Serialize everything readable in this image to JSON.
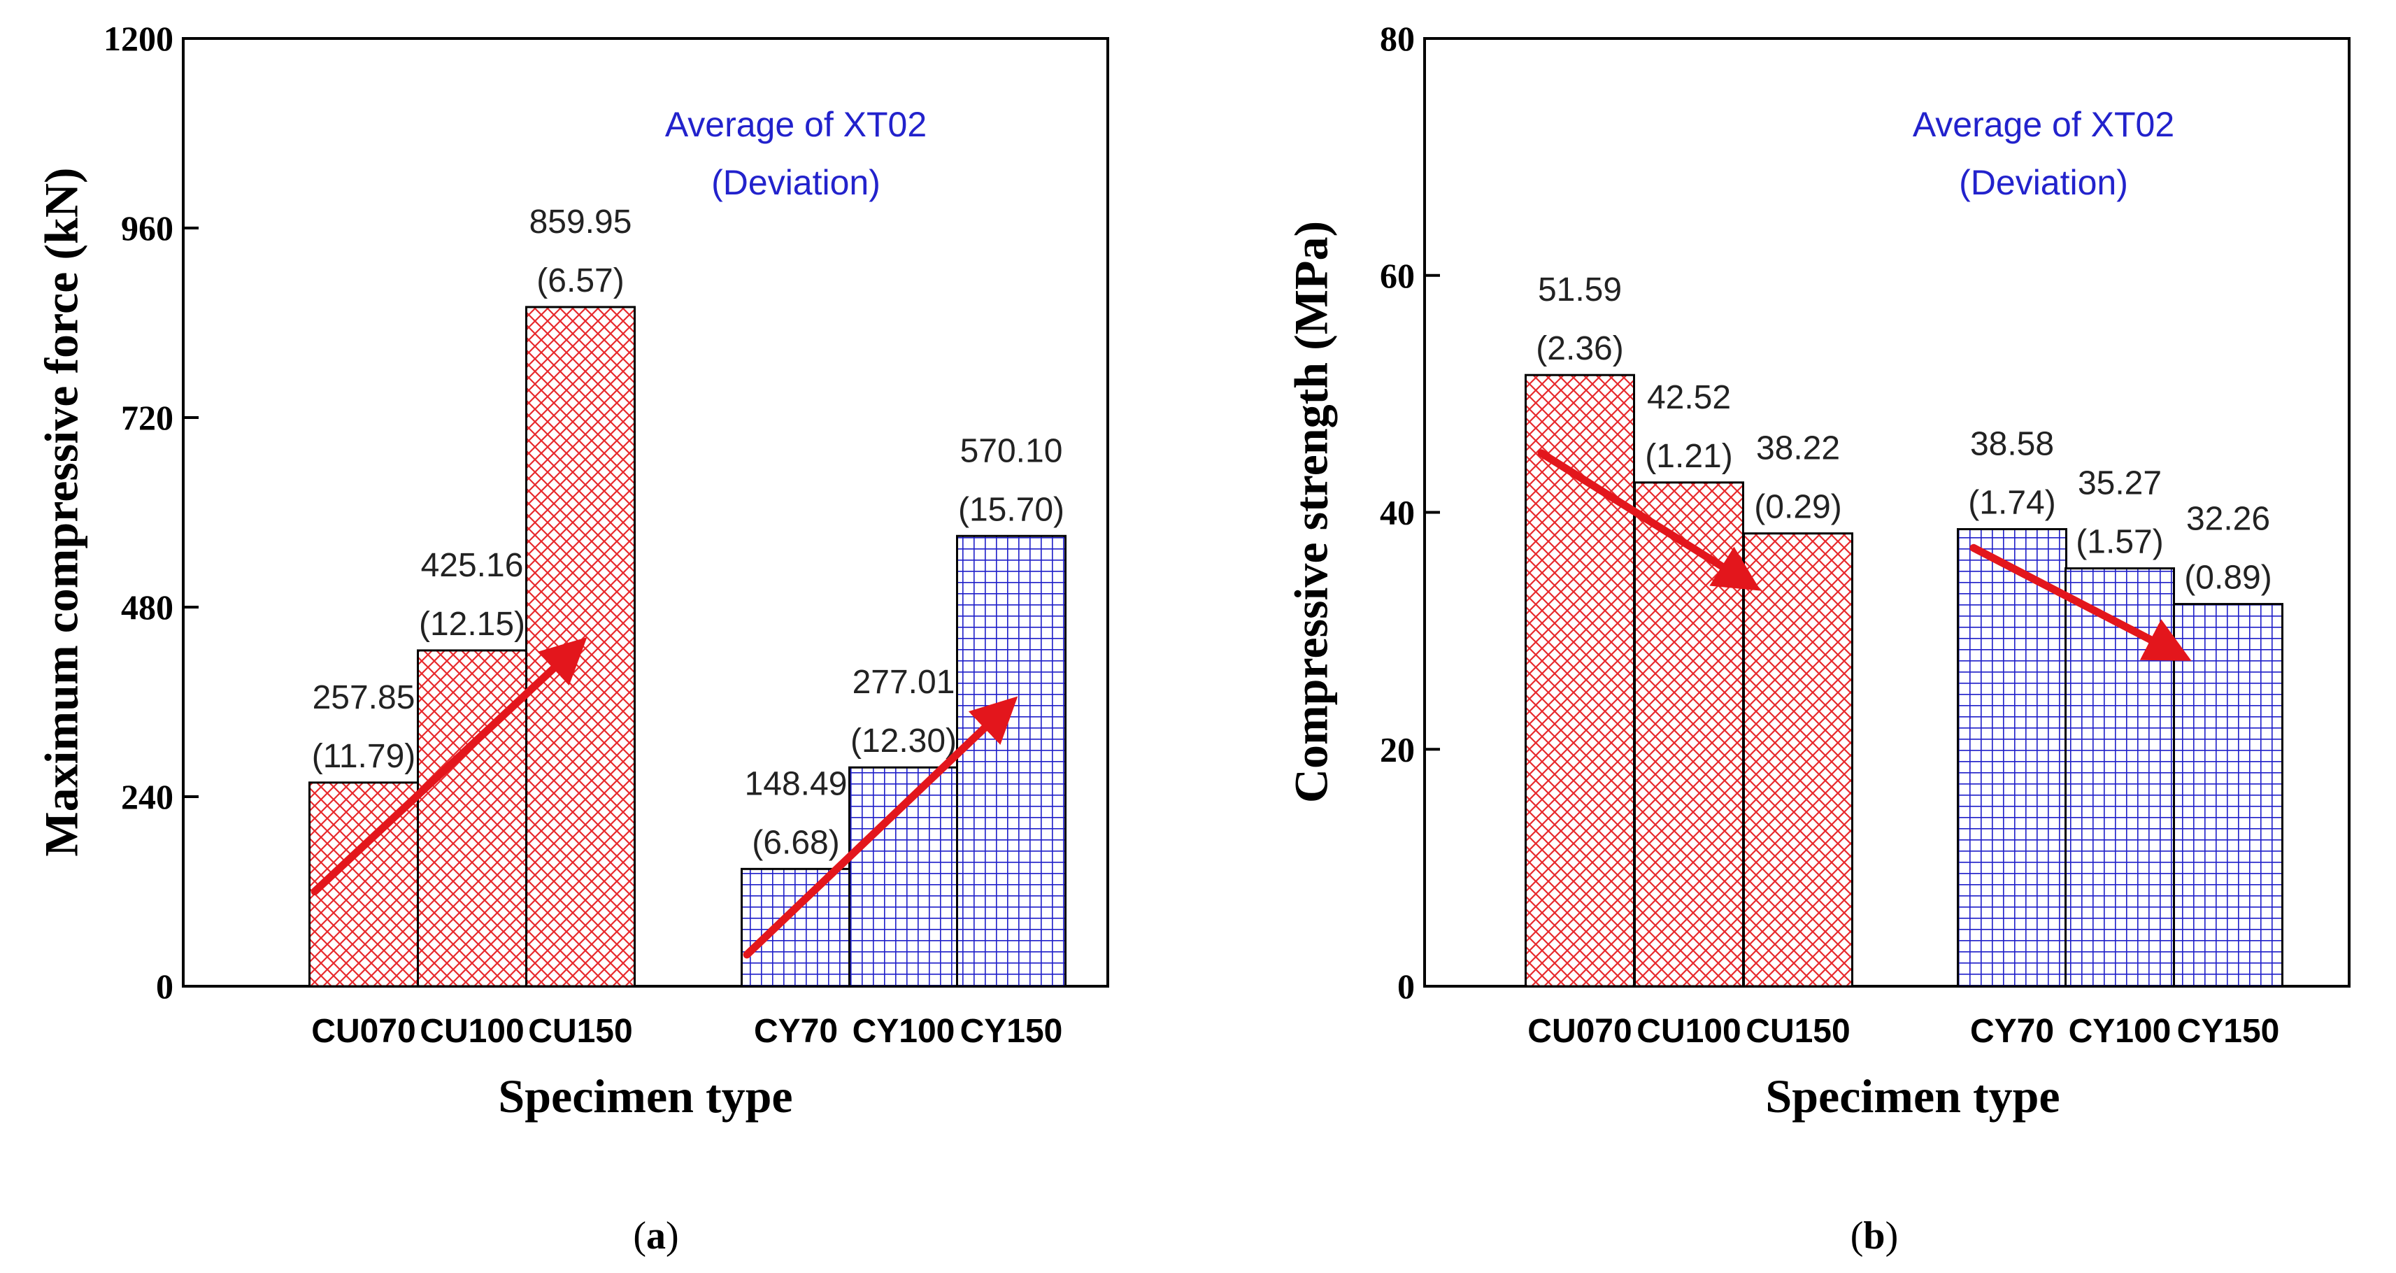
{
  "colors": {
    "cu_hatch": "#e8292c",
    "cy_hatch": "#1f1fc9",
    "arrow": "#e3161c",
    "note": "#2222cc"
  },
  "panels": [
    {
      "label": "(a)",
      "label_letter": "a"
    },
    {
      "label": "(b)",
      "label_letter": "b"
    }
  ],
  "chart_data": [
    {
      "type": "bar",
      "title": "",
      "note_line1": "Average of XT02",
      "note_line2": "(Deviation)",
      "xlabel": "Specimen type",
      "ylabel": "Maximum compressive force (kN)",
      "ylim": [
        0,
        1200
      ],
      "yticks": [
        "0",
        "240",
        "480",
        "720",
        "960",
        "1200"
      ],
      "categories": [
        "CU070",
        "CU100",
        "CU150",
        "CY70",
        "CY100",
        "CY150"
      ],
      "values": [
        257.85,
        425.16,
        859.95,
        148.49,
        277.01,
        570.1
      ],
      "value_labels": [
        "257.85",
        "425.16",
        "859.95",
        "148.49",
        "277.01",
        "570.10"
      ],
      "deviation_labels": [
        "(11.79)",
        "(12.15)",
        "(6.57)",
        "(6.68)",
        "(12.30)",
        "(15.70)"
      ],
      "groups": [
        {
          "name": "CU",
          "pattern": "crosshatch",
          "indices": [
            0,
            1,
            2
          ]
        },
        {
          "name": "CY",
          "pattern": "grid",
          "indices": [
            3,
            4,
            5
          ]
        }
      ],
      "trend_arrows": [
        {
          "group": "CU",
          "from": [
            0,
            120
          ],
          "to": [
            2,
            430
          ],
          "direction": "increasing"
        },
        {
          "group": "CY",
          "from": [
            3,
            40
          ],
          "to": [
            5,
            355
          ],
          "direction": "increasing"
        }
      ],
      "grid": false
    },
    {
      "type": "bar",
      "title": "",
      "note_line1": "Average of XT02",
      "note_line2": "(Deviation)",
      "xlabel": "Specimen type",
      "ylabel": "Compressive strength (MPa)",
      "ylim": [
        0,
        80
      ],
      "yticks": [
        "0",
        "20",
        "40",
        "60",
        "80"
      ],
      "categories": [
        "CU070",
        "CU100",
        "CU150",
        "CY70",
        "CY100",
        "CY150"
      ],
      "values": [
        51.59,
        42.52,
        38.22,
        38.58,
        35.27,
        32.26
      ],
      "value_labels": [
        "51.59",
        "42.52",
        "38.22",
        "38.58",
        "35.27",
        "32.26"
      ],
      "deviation_labels": [
        "(2.36)",
        "(1.21)",
        "(0.29)",
        "(1.74)",
        "(1.57)",
        "(0.89)"
      ],
      "groups": [
        {
          "name": "CU",
          "pattern": "crosshatch",
          "indices": [
            0,
            1,
            2
          ]
        },
        {
          "name": "CY",
          "pattern": "grid",
          "indices": [
            3,
            4,
            5
          ]
        }
      ],
      "trend_arrows": [
        {
          "group": "CU",
          "from": [
            0,
            45
          ],
          "to": [
            2,
            34
          ],
          "direction": "decreasing"
        },
        {
          "group": "CY",
          "from": [
            3,
            37
          ],
          "to": [
            5,
            28
          ],
          "direction": "decreasing"
        }
      ],
      "grid": false
    }
  ]
}
